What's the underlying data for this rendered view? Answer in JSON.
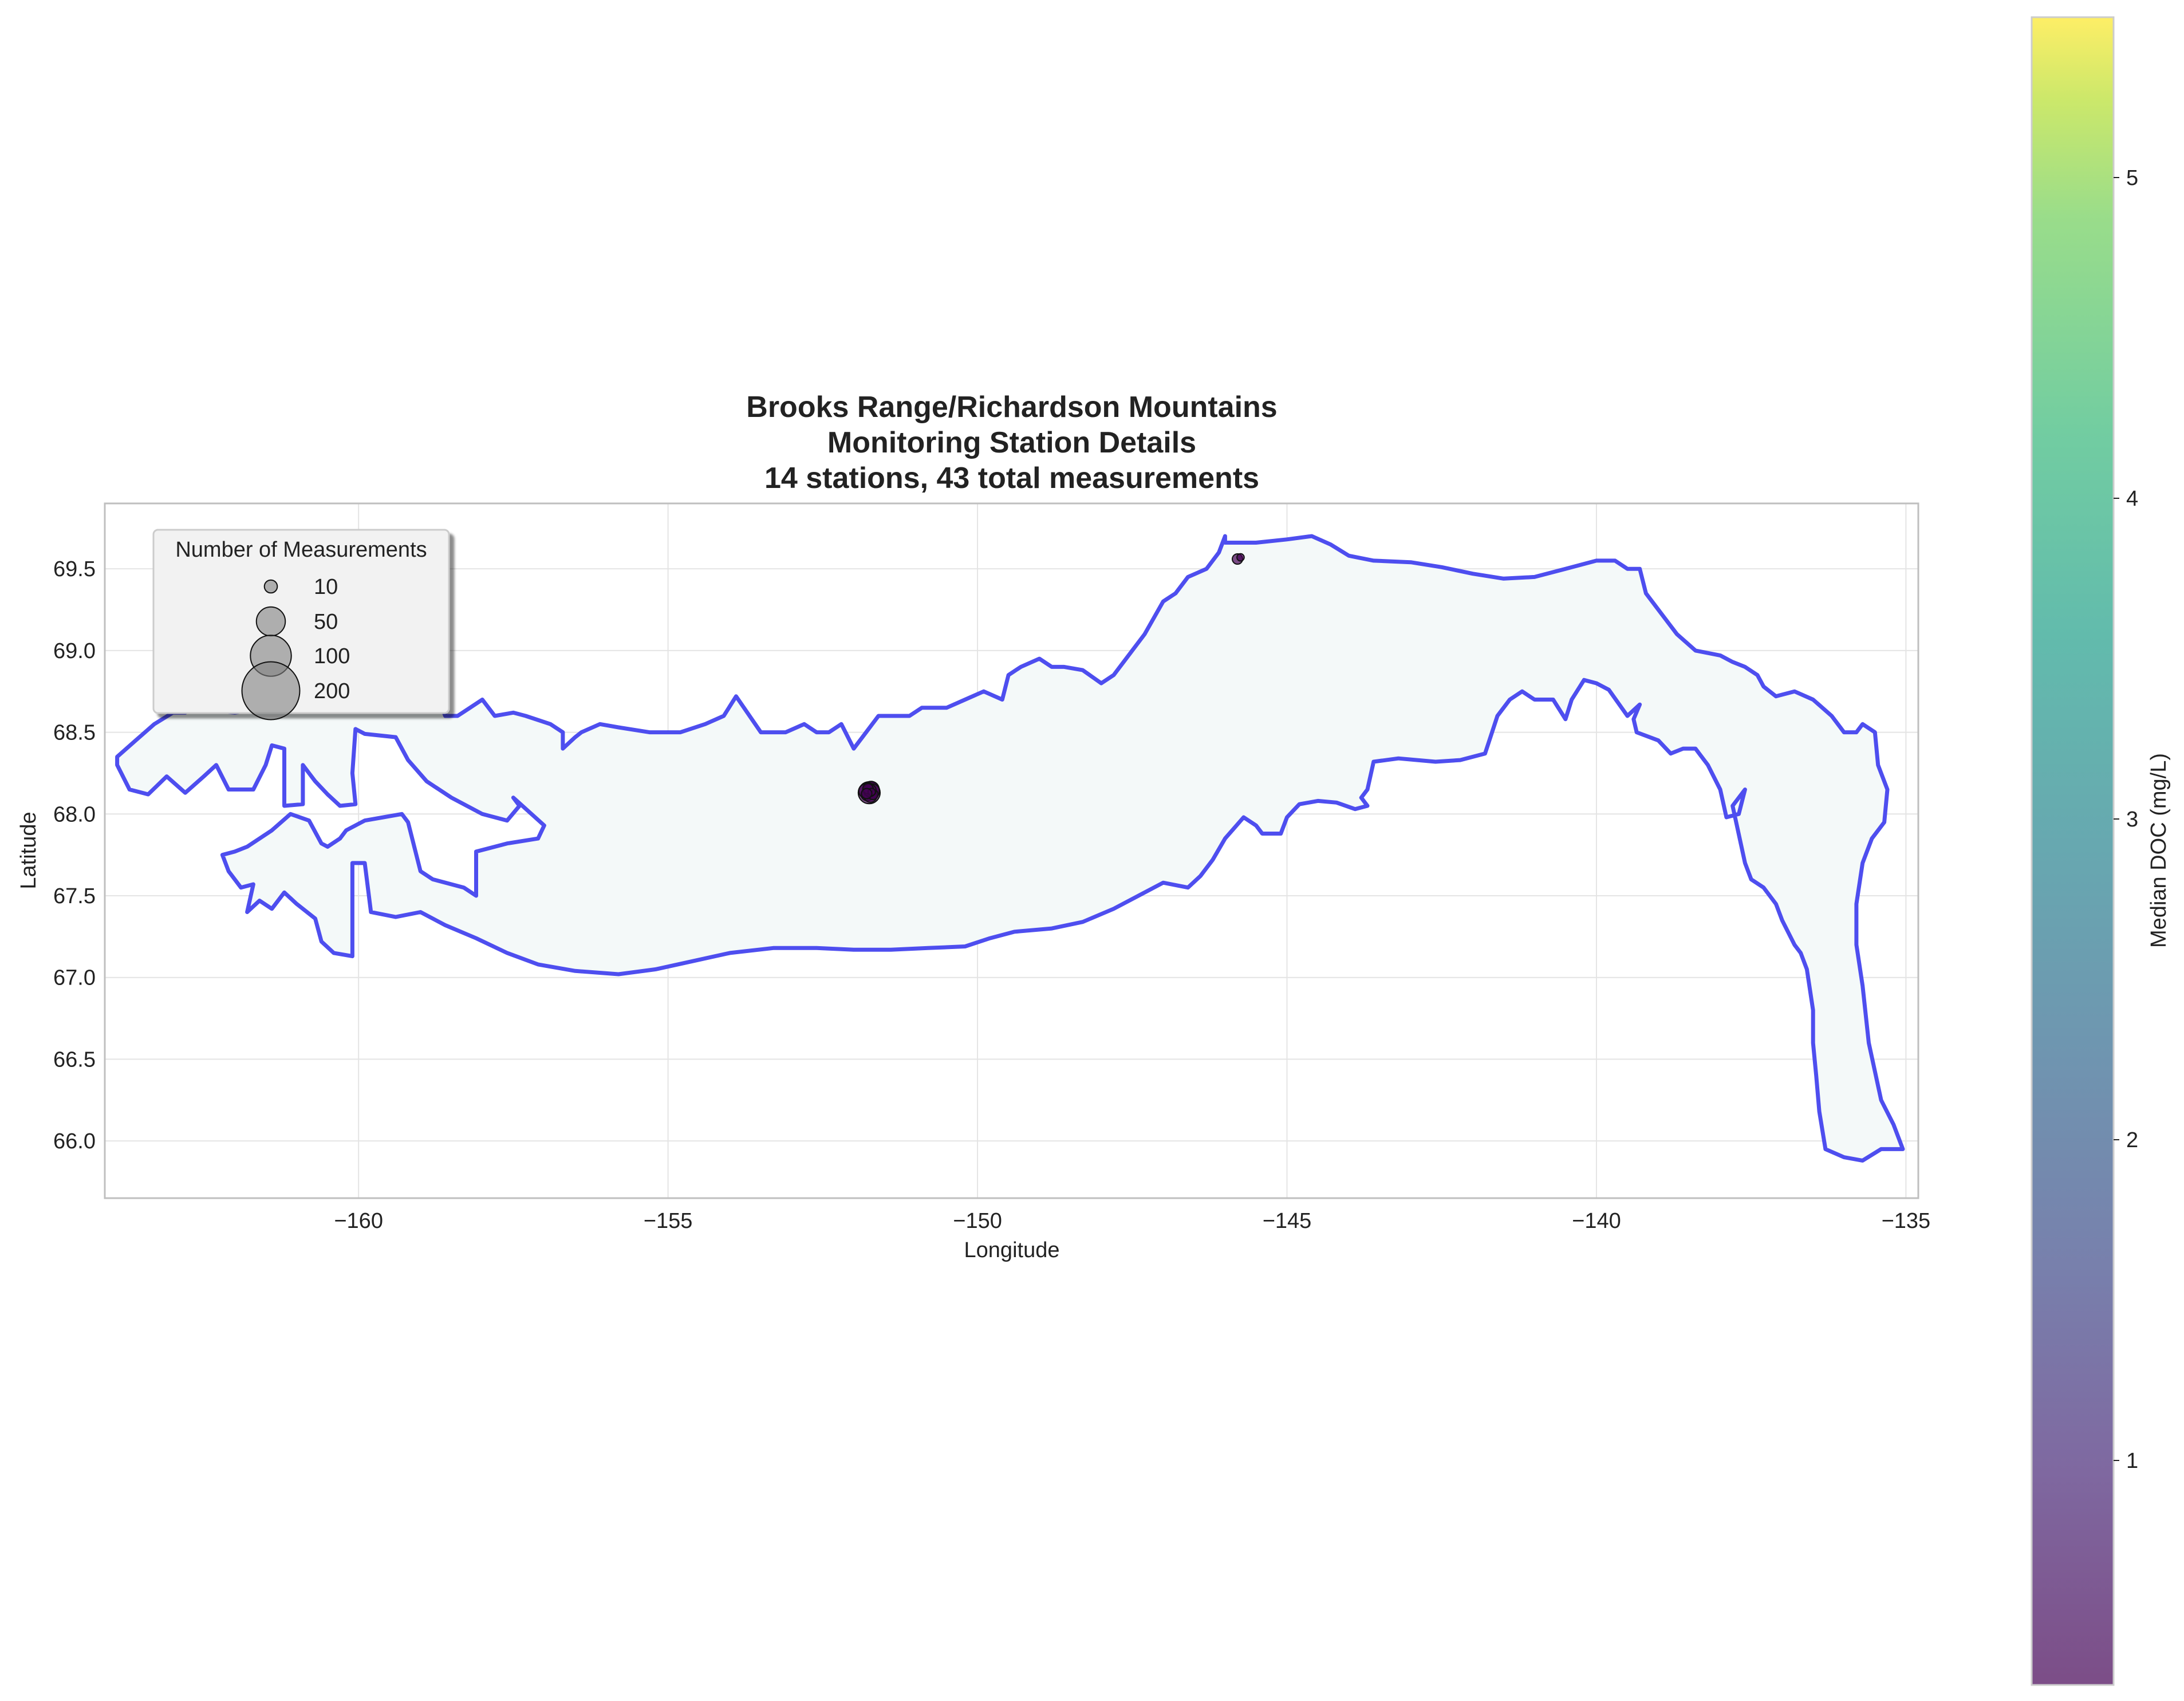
{
  "chart_data": {
    "type": "scatter",
    "title_lines": [
      "Brooks Range/Richardson Mountains",
      "Monitoring Station Details",
      "14 stations, 43 total measurements"
    ],
    "xlabel": "Longitude",
    "ylabel": "Latitude",
    "xlim": [
      -164.1,
      -134.8
    ],
    "ylim": [
      65.65,
      69.9
    ],
    "xticks": [
      -160,
      -155,
      -150,
      -145,
      -140,
      -135
    ],
    "xtick_labels": [
      "−160",
      "−155",
      "−150",
      "−145",
      "−140",
      "−135"
    ],
    "yticks": [
      66.0,
      66.5,
      67.0,
      67.5,
      68.0,
      68.5,
      69.0,
      69.5
    ],
    "ytick_labels": [
      "66.0",
      "66.5",
      "67.0",
      "67.5",
      "68.0",
      "68.5",
      "69.0",
      "69.5"
    ],
    "grid": true,
    "region_outline": {
      "color": "#4545ee",
      "fill": "#f4f9f9",
      "points": [
        [
          -163.9,
          68.3
        ],
        [
          -163.7,
          68.15
        ],
        [
          -163.4,
          68.12
        ],
        [
          -163.1,
          68.23
        ],
        [
          -162.8,
          68.13
        ],
        [
          -162.5,
          68.23
        ],
        [
          -162.3,
          68.3
        ],
        [
          -162.1,
          68.15
        ],
        [
          -161.7,
          68.15
        ],
        [
          -161.5,
          68.3
        ],
        [
          -161.4,
          68.42
        ],
        [
          -161.2,
          68.4
        ],
        [
          -161.2,
          68.05
        ],
        [
          -160.9,
          68.06
        ],
        [
          -160.9,
          68.3
        ],
        [
          -160.7,
          68.2
        ],
        [
          -160.5,
          68.12
        ],
        [
          -160.3,
          68.05
        ],
        [
          -160.05,
          68.06
        ],
        [
          -160.1,
          68.25
        ],
        [
          -160.05,
          68.52
        ],
        [
          -159.9,
          68.49
        ],
        [
          -159.4,
          68.47
        ],
        [
          -159.2,
          68.33
        ],
        [
          -158.9,
          68.2
        ],
        [
          -158.5,
          68.1
        ],
        [
          -158.0,
          68.0
        ],
        [
          -157.6,
          67.96
        ],
        [
          -157.4,
          68.05
        ],
        [
          -157.5,
          68.1
        ],
        [
          -157.0,
          67.93
        ],
        [
          -157.1,
          67.85
        ],
        [
          -157.6,
          67.82
        ],
        [
          -157.9,
          67.79
        ],
        [
          -158.1,
          67.77
        ],
        [
          -158.1,
          67.5
        ],
        [
          -158.3,
          67.55
        ],
        [
          -158.8,
          67.6
        ],
        [
          -159.0,
          67.65
        ],
        [
          -159.2,
          67.95
        ],
        [
          -159.3,
          68.0
        ],
        [
          -159.6,
          67.98
        ],
        [
          -159.9,
          67.96
        ],
        [
          -160.2,
          67.9
        ],
        [
          -160.3,
          67.85
        ],
        [
          -160.5,
          67.8
        ],
        [
          -160.6,
          67.82
        ],
        [
          -160.8,
          67.96
        ],
        [
          -161.1,
          68.0
        ],
        [
          -161.4,
          67.9
        ],
        [
          -161.8,
          67.8
        ],
        [
          -162.0,
          67.77
        ],
        [
          -162.2,
          67.75
        ],
        [
          -162.1,
          67.65
        ],
        [
          -161.9,
          67.55
        ],
        [
          -161.7,
          67.57
        ],
        [
          -161.8,
          67.4
        ],
        [
          -161.6,
          67.47
        ],
        [
          -161.4,
          67.42
        ],
        [
          -161.2,
          67.52
        ],
        [
          -161.0,
          67.45
        ],
        [
          -160.7,
          67.36
        ],
        [
          -160.6,
          67.22
        ],
        [
          -160.4,
          67.15
        ],
        [
          -160.1,
          67.13
        ],
        [
          -160.1,
          67.7
        ],
        [
          -159.9,
          67.7
        ],
        [
          -159.8,
          67.4
        ],
        [
          -159.4,
          67.37
        ],
        [
          -159.0,
          67.4
        ],
        [
          -158.6,
          67.32
        ],
        [
          -158.1,
          67.24
        ],
        [
          -157.6,
          67.15
        ],
        [
          -157.1,
          67.08
        ],
        [
          -156.5,
          67.04
        ],
        [
          -155.8,
          67.02
        ],
        [
          -155.2,
          67.05
        ],
        [
          -154.6,
          67.1
        ],
        [
          -154.0,
          67.15
        ],
        [
          -153.3,
          67.18
        ],
        [
          -152.6,
          67.18
        ],
        [
          -152.0,
          67.17
        ],
        [
          -151.4,
          67.17
        ],
        [
          -150.8,
          67.18
        ],
        [
          -150.2,
          67.19
        ],
        [
          -149.8,
          67.24
        ],
        [
          -149.4,
          67.28
        ],
        [
          -148.8,
          67.3
        ],
        [
          -148.3,
          67.34
        ],
        [
          -147.8,
          67.42
        ],
        [
          -147.4,
          67.5
        ],
        [
          -147.0,
          67.58
        ],
        [
          -146.6,
          67.55
        ],
        [
          -146.4,
          67.62
        ],
        [
          -146.2,
          67.72
        ],
        [
          -146.0,
          67.85
        ],
        [
          -145.7,
          67.98
        ],
        [
          -145.5,
          67.93
        ],
        [
          -145.4,
          67.88
        ],
        [
          -145.1,
          67.88
        ],
        [
          -145.0,
          67.98
        ],
        [
          -144.8,
          68.06
        ],
        [
          -144.5,
          68.08
        ],
        [
          -144.2,
          68.07
        ],
        [
          -143.9,
          68.03
        ],
        [
          -143.7,
          68.05
        ],
        [
          -143.8,
          68.1
        ],
        [
          -143.7,
          68.15
        ],
        [
          -143.6,
          68.32
        ],
        [
          -143.2,
          68.34
        ],
        [
          -142.6,
          68.32
        ],
        [
          -142.2,
          68.33
        ],
        [
          -141.8,
          68.37
        ],
        [
          -141.6,
          68.6
        ],
        [
          -141.4,
          68.7
        ],
        [
          -141.2,
          68.75
        ],
        [
          -141.0,
          68.7
        ],
        [
          -140.7,
          68.7
        ],
        [
          -140.5,
          68.58
        ],
        [
          -140.4,
          68.7
        ],
        [
          -140.2,
          68.82
        ],
        [
          -140.0,
          68.8
        ],
        [
          -139.8,
          68.76
        ],
        [
          -139.5,
          68.6
        ],
        [
          -139.3,
          68.67
        ],
        [
          -139.4,
          68.58
        ],
        [
          -139.35,
          68.5
        ],
        [
          -139.0,
          68.45
        ],
        [
          -138.8,
          68.37
        ],
        [
          -138.6,
          68.4
        ],
        [
          -138.4,
          68.4
        ],
        [
          -138.2,
          68.3
        ],
        [
          -138.0,
          68.15
        ],
        [
          -137.9,
          67.98
        ],
        [
          -137.7,
          68.0
        ],
        [
          -137.6,
          68.15
        ],
        [
          -137.8,
          68.05
        ],
        [
          -137.6,
          67.7
        ],
        [
          -137.5,
          67.6
        ],
        [
          -137.3,
          67.55
        ],
        [
          -137.1,
          67.45
        ],
        [
          -137.0,
          67.35
        ],
        [
          -136.8,
          67.2
        ],
        [
          -136.7,
          67.15
        ],
        [
          -136.6,
          67.05
        ],
        [
          -136.5,
          66.8
        ],
        [
          -136.5,
          66.6
        ],
        [
          -136.45,
          66.4
        ],
        [
          -136.4,
          66.18
        ],
        [
          -136.3,
          65.95
        ],
        [
          -136.0,
          65.9
        ],
        [
          -135.7,
          65.88
        ],
        [
          -135.4,
          65.95
        ],
        [
          -135.05,
          65.95
        ],
        [
          -135.2,
          66.1
        ],
        [
          -135.4,
          66.25
        ],
        [
          -135.6,
          66.6
        ],
        [
          -135.7,
          66.95
        ],
        [
          -135.8,
          67.2
        ],
        [
          -135.8,
          67.45
        ],
        [
          -135.7,
          67.7
        ],
        [
          -135.55,
          67.85
        ],
        [
          -135.35,
          67.95
        ],
        [
          -135.3,
          68.15
        ],
        [
          -135.45,
          68.3
        ],
        [
          -135.5,
          68.5
        ],
        [
          -135.7,
          68.55
        ],
        [
          -135.8,
          68.5
        ],
        [
          -136.0,
          68.5
        ],
        [
          -136.2,
          68.6
        ],
        [
          -136.5,
          68.7
        ],
        [
          -136.8,
          68.75
        ],
        [
          -137.1,
          68.72
        ],
        [
          -137.3,
          68.78
        ],
        [
          -137.4,
          68.85
        ],
        [
          -137.6,
          68.9
        ],
        [
          -137.8,
          68.93
        ],
        [
          -138.0,
          68.97
        ],
        [
          -138.4,
          69.0
        ],
        [
          -138.7,
          69.1
        ],
        [
          -139.0,
          69.25
        ],
        [
          -139.2,
          69.35
        ],
        [
          -139.3,
          69.5
        ],
        [
          -139.5,
          69.5
        ],
        [
          -139.7,
          69.55
        ],
        [
          -140.0,
          69.55
        ],
        [
          -140.5,
          69.5
        ],
        [
          -141.0,
          69.45
        ],
        [
          -141.5,
          69.44
        ],
        [
          -142.0,
          69.47
        ],
        [
          -142.5,
          69.51
        ],
        [
          -143.0,
          69.54
        ],
        [
          -143.6,
          69.55
        ],
        [
          -144.0,
          69.58
        ],
        [
          -144.3,
          69.65
        ],
        [
          -144.6,
          69.7
        ],
        [
          -145.0,
          69.68
        ],
        [
          -145.5,
          69.66
        ],
        [
          -146.0,
          69.66
        ],
        [
          -146.0,
          69.7
        ],
        [
          -146.1,
          69.6
        ],
        [
          -146.3,
          69.5
        ],
        [
          -146.6,
          69.45
        ],
        [
          -146.8,
          69.35
        ],
        [
          -147.0,
          69.3
        ],
        [
          -147.3,
          69.1
        ],
        [
          -147.6,
          68.95
        ],
        [
          -147.8,
          68.85
        ],
        [
          -148.0,
          68.8
        ],
        [
          -148.3,
          68.88
        ],
        [
          -148.6,
          68.9
        ],
        [
          -148.8,
          68.9
        ],
        [
          -149.0,
          68.95
        ],
        [
          -149.3,
          68.9
        ],
        [
          -149.5,
          68.85
        ],
        [
          -149.6,
          68.7
        ],
        [
          -149.9,
          68.75
        ],
        [
          -150.2,
          68.7
        ],
        [
          -150.5,
          68.65
        ],
        [
          -150.9,
          68.65
        ],
        [
          -151.1,
          68.6
        ],
        [
          -151.4,
          68.6
        ],
        [
          -151.6,
          68.6
        ],
        [
          -151.8,
          68.5
        ],
        [
          -152.0,
          68.4
        ],
        [
          -152.2,
          68.55
        ],
        [
          -152.4,
          68.5
        ],
        [
          -152.6,
          68.5
        ],
        [
          -152.8,
          68.55
        ],
        [
          -153.1,
          68.5
        ],
        [
          -153.5,
          68.5
        ],
        [
          -153.9,
          68.72
        ],
        [
          -154.1,
          68.6
        ],
        [
          -154.4,
          68.55
        ],
        [
          -154.8,
          68.5
        ],
        [
          -155.3,
          68.5
        ],
        [
          -155.8,
          68.53
        ],
        [
          -156.1,
          68.55
        ],
        [
          -156.4,
          68.5
        ],
        [
          -156.5,
          68.47
        ],
        [
          -156.7,
          68.4
        ],
        [
          -156.7,
          68.5
        ],
        [
          -156.9,
          68.55
        ],
        [
          -157.3,
          68.6
        ],
        [
          -157.5,
          68.62
        ],
        [
          -157.8,
          68.6
        ],
        [
          -158.0,
          68.7
        ],
        [
          -158.2,
          68.65
        ],
        [
          -158.4,
          68.6
        ],
        [
          -158.6,
          68.6
        ],
        [
          -158.8,
          68.8
        ],
        [
          -159.1,
          68.8
        ],
        [
          -159.5,
          68.85
        ],
        [
          -159.8,
          68.85
        ],
        [
          -160.2,
          68.8
        ],
        [
          -160.6,
          68.75
        ],
        [
          -161.0,
          68.7
        ],
        [
          -161.5,
          68.65
        ],
        [
          -162.0,
          68.62
        ],
        [
          -162.5,
          68.64
        ],
        [
          -162.7,
          68.7
        ],
        [
          -162.8,
          68.62
        ],
        [
          -163.0,
          68.62
        ],
        [
          -163.3,
          68.55
        ],
        [
          -163.6,
          68.45
        ],
        [
          -163.9,
          68.35
        ]
      ]
    },
    "stations": [
      {
        "lon": -151.75,
        "lat": 68.13,
        "n": 9,
        "doc": 0.45
      },
      {
        "lon": -151.72,
        "lat": 68.15,
        "n": 5,
        "doc": 0.5
      },
      {
        "lon": -151.78,
        "lat": 68.12,
        "n": 3,
        "doc": 0.4
      },
      {
        "lon": -151.7,
        "lat": 68.14,
        "n": 4,
        "doc": 0.45
      },
      {
        "lon": -151.76,
        "lat": 68.16,
        "n": 2,
        "doc": 0.5
      },
      {
        "lon": -151.73,
        "lat": 68.11,
        "n": 3,
        "doc": 0.45
      },
      {
        "lon": -151.8,
        "lat": 68.14,
        "n": 4,
        "doc": 0.4
      },
      {
        "lon": -151.69,
        "lat": 68.12,
        "n": 2,
        "doc": 0.45
      },
      {
        "lon": -151.74,
        "lat": 68.145,
        "n": 3,
        "doc": 0.5
      },
      {
        "lon": -151.77,
        "lat": 68.155,
        "n": 2,
        "doc": 0.45
      },
      {
        "lon": -151.71,
        "lat": 68.135,
        "n": 1,
        "doc": 0.4
      },
      {
        "lon": -151.79,
        "lat": 68.125,
        "n": 2,
        "doc": 0.45
      },
      {
        "lon": -145.8,
        "lat": 69.56,
        "n": 2,
        "doc": 0.4
      },
      {
        "lon": -145.75,
        "lat": 69.57,
        "n": 1,
        "doc": 0.45
      }
    ],
    "size_legend": {
      "title": "Number of Measurements",
      "entries": [
        {
          "label": "10",
          "n": 10
        },
        {
          "label": "50",
          "n": 50
        },
        {
          "label": "100",
          "n": 100
        },
        {
          "label": "200",
          "n": 200
        }
      ],
      "placement": "upper-left"
    },
    "colorbar": {
      "label": "Median DOC (mg/L)",
      "colormap": "viridis",
      "range": [
        0.3,
        5.5
      ],
      "ticks": [
        1,
        2,
        3,
        4,
        5
      ],
      "tick_labels": [
        "1",
        "2",
        "3",
        "4",
        "5"
      ]
    }
  }
}
